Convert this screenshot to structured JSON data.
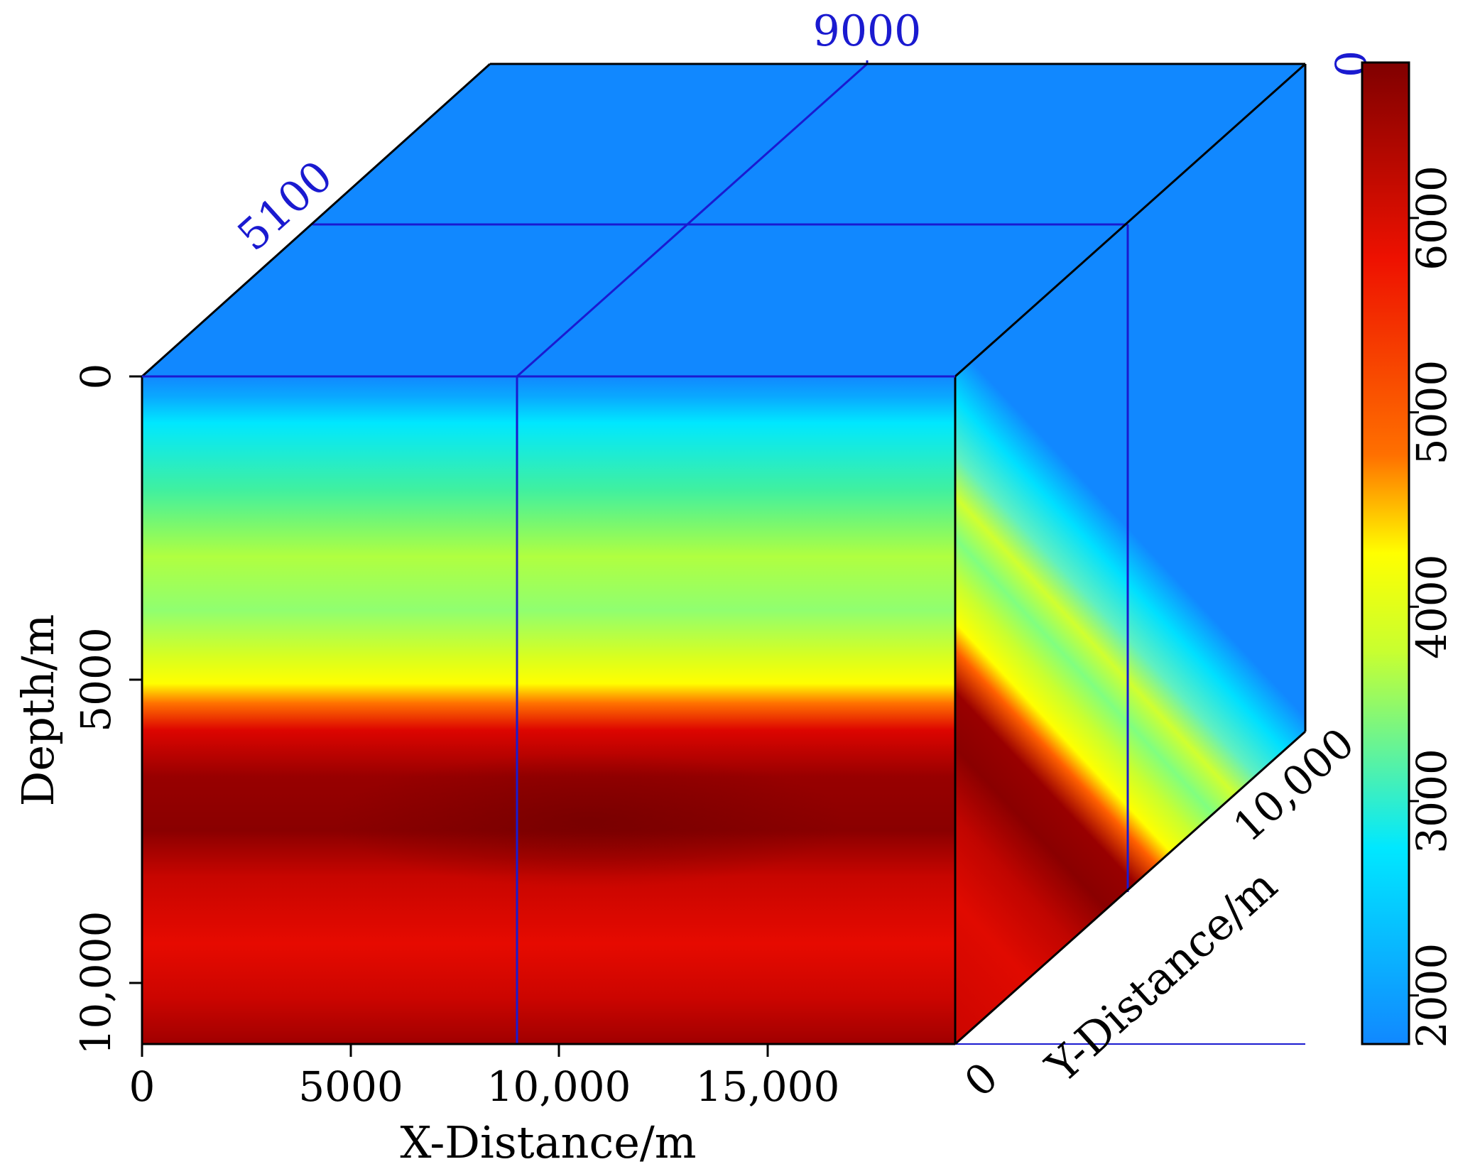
{
  "chart_data": {
    "type": "heatmap",
    "subtype": "3d-cube-volume-slices",
    "x_axis": {
      "label": "X-Distance/m",
      "range": [
        0,
        19500
      ],
      "ticks": [
        0,
        5000,
        10000,
        15000
      ],
      "tick_labels": [
        "0",
        "5000",
        "10,000",
        "15,000"
      ]
    },
    "y_axis": {
      "label": "Y-Distance/m",
      "range": [
        0,
        10000
      ],
      "tick_labels": [
        "0",
        "10,000"
      ]
    },
    "depth_axis": {
      "label": "Depth/m",
      "range": [
        0,
        11000
      ],
      "ticks": [
        0,
        5000,
        10000
      ],
      "tick_labels": [
        "0",
        "5000",
        "10,000"
      ]
    },
    "slices": {
      "x": 9000,
      "y": 5100,
      "depth": 0,
      "x_label": "9000",
      "y_label": "5100",
      "depth_label": "0"
    },
    "colorbar": {
      "range": [
        1750,
        6800
      ],
      "ticks": [
        2000,
        3000,
        4000,
        5000,
        6000
      ],
      "tick_labels": [
        "2000",
        "3000",
        "4000",
        "5000",
        "6000"
      ],
      "colors": [
        "#1188ff",
        "#00e8ff",
        "#c8ff30",
        "#ffff00",
        "#ff7000",
        "#ee1100",
        "#800000"
      ],
      "color_positions": [
        0,
        0.2,
        0.4,
        0.5,
        0.6,
        0.8,
        1
      ]
    },
    "velocity_profile_vs_depth": {
      "depth": [
        0,
        500,
        1000,
        2000,
        3000,
        4000,
        5000,
        5400,
        5800,
        6500,
        7500,
        9000,
        10000,
        11000
      ],
      "value": [
        1900,
        2300,
        2600,
        3200,
        3600,
        3900,
        4200,
        4700,
        5800,
        6500,
        6700,
        6200,
        6000,
        6300
      ]
    },
    "grid": false,
    "legend": "none"
  }
}
